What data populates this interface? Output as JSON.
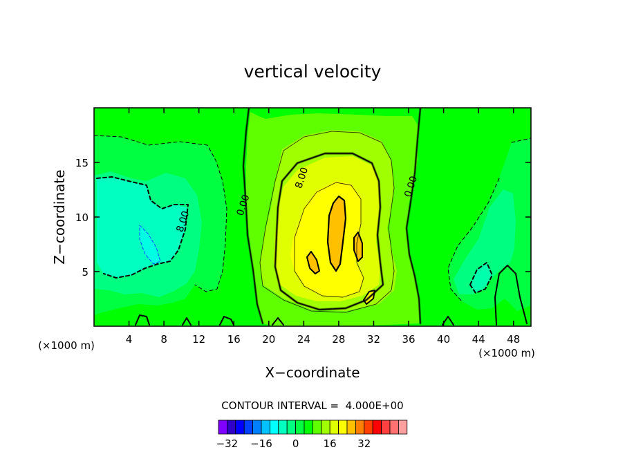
{
  "chart_data": {
    "type": "heatmap",
    "title": "vertical velocity",
    "xlabel": "X−coordinate",
    "ylabel": "Z−coordinate",
    "x_unit": "(×1000 m)",
    "xlim": [
      0,
      50
    ],
    "ylim": [
      0,
      20
    ],
    "x_ticks": [
      4,
      8,
      12,
      16,
      20,
      24,
      28,
      32,
      36,
      40,
      44,
      48
    ],
    "y_ticks": [
      5,
      10,
      15
    ],
    "contour_labels": [
      {
        "text": "0.00",
        "x": 17.4,
        "y": 11.0
      },
      {
        "text": "8.00",
        "x": 24.1,
        "y": 13.5
      },
      {
        "text": "0.00",
        "x": 36.6,
        "y": 12.7
      },
      {
        "text": "8.00",
        "x": 10.5,
        "y": 9.5
      }
    ],
    "contour_interval_text": "CONTOUR INTERVAL =  4.000E+00",
    "colorbar": {
      "ticks": [
        -32,
        -16,
        0,
        16,
        32
      ],
      "tick_labels": [
        "−32",
        "−16",
        "0",
        "16",
        "32"
      ],
      "min": -36,
      "step": 4,
      "colors": [
        "#7f00ff",
        "#3000c8",
        "#0000ff",
        "#0040ff",
        "#0080ff",
        "#00c0ff",
        "#00ffff",
        "#00ffc0",
        "#00ff80",
        "#00ff40",
        "#00ff00",
        "#60ff00",
        "#a0ff00",
        "#e0ff00",
        "#ffff00",
        "#ffc000",
        "#ff8000",
        "#ff4000",
        "#ff0000",
        "#ff4040",
        "#ff7070",
        "#ffa0a0"
      ]
    },
    "features": [
      {
        "kind": "updraft",
        "name": "central updraft",
        "center": [
          27.5,
          7.5
        ],
        "max": 16
      },
      {
        "kind": "downdraft",
        "name": "left downdraft",
        "center": [
          6.5,
          9.0
        ],
        "min": -12
      },
      {
        "kind": "downdraft",
        "name": "right downdraft",
        "center": [
          45.5,
          8.0
        ],
        "min": -8
      }
    ],
    "grid": false,
    "legend": "bottom"
  }
}
